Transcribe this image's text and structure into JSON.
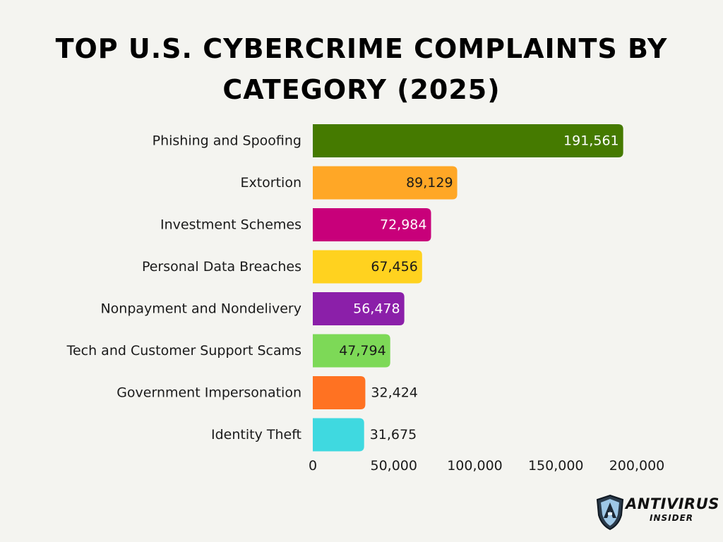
{
  "chart_data": {
    "type": "bar",
    "orientation": "horizontal",
    "title": "Top U.S. Cybercrime Complaints by Category (2025)",
    "categories": [
      "Phishing and Spoofing",
      "Extortion",
      "Investment Schemes",
      "Personal Data Breaches",
      "Nonpayment and Nondelivery",
      "Tech and Customer Support Scams",
      "Government Impersonation",
      "Identity Theft"
    ],
    "values": [
      191561,
      89129,
      72984,
      67456,
      56478,
      47794,
      32424,
      31675
    ],
    "value_labels": [
      "191,561",
      "89,129",
      "72,984",
      "67,456",
      "56,478",
      "47,794",
      "32,424",
      "31,675"
    ],
    "colors": [
      "#457a00",
      "#ffa726",
      "#c8007a",
      "#ffd21f",
      "#8b1fa9",
      "#7dd957",
      "#ff7222",
      "#3fd9e0"
    ],
    "label_colors": [
      "#ffffff",
      "#1a1a1a",
      "#ffffff",
      "#1a1a1a",
      "#ffffff",
      "#1a1a1a",
      "#1a1a1a",
      "#1a1a1a"
    ],
    "label_inside": [
      true,
      true,
      true,
      true,
      true,
      true,
      false,
      false
    ],
    "xlim": [
      0,
      200000
    ],
    "xticks": [
      0,
      50000,
      100000,
      150000,
      200000
    ],
    "xtick_labels": [
      "0",
      "50,000",
      "100,000",
      "150,000",
      "200,000"
    ],
    "grid": false,
    "legend": "none",
    "xlabel": "",
    "ylabel": ""
  },
  "logo": {
    "word1": "ANTIVIRUS",
    "word2": "INSIDER"
  }
}
